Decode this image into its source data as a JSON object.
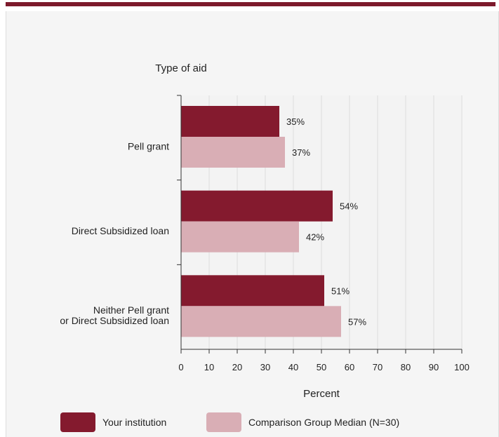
{
  "colors": {
    "accent_bar": "#7d1a2c",
    "panel_bg": "#f5f5f5",
    "plot_bg": "#f3f3f3",
    "grid": "#dcdcdc",
    "series_institution": "#841a2e",
    "series_comparison": "#d9aeb5"
  },
  "chart_data": {
    "type": "bar",
    "orientation": "horizontal",
    "title": "Type of aid",
    "xlabel": "Percent",
    "ylabel": "",
    "xlim": [
      0,
      100
    ],
    "xticks": [
      "0",
      "10",
      "20",
      "30",
      "40",
      "50",
      "60",
      "70",
      "80",
      "90",
      "100"
    ],
    "grid": true,
    "legend_position": "bottom",
    "categories": [
      {
        "lines": [
          "Pell grant"
        ]
      },
      {
        "lines": [
          "Direct Subsidized loan"
        ]
      },
      {
        "lines": [
          "Neither Pell grant",
          "or Direct Subsidized loan"
        ]
      }
    ],
    "series": [
      {
        "name": "Your institution",
        "color": "#841a2e",
        "values": [
          35,
          54,
          51
        ],
        "labels": [
          "35%",
          "54%",
          "51%"
        ]
      },
      {
        "name": "Comparison Group Median (N=30)",
        "color": "#d9aeb5",
        "values": [
          37,
          42,
          57
        ],
        "labels": [
          "37%",
          "42%",
          "57%"
        ]
      }
    ]
  }
}
